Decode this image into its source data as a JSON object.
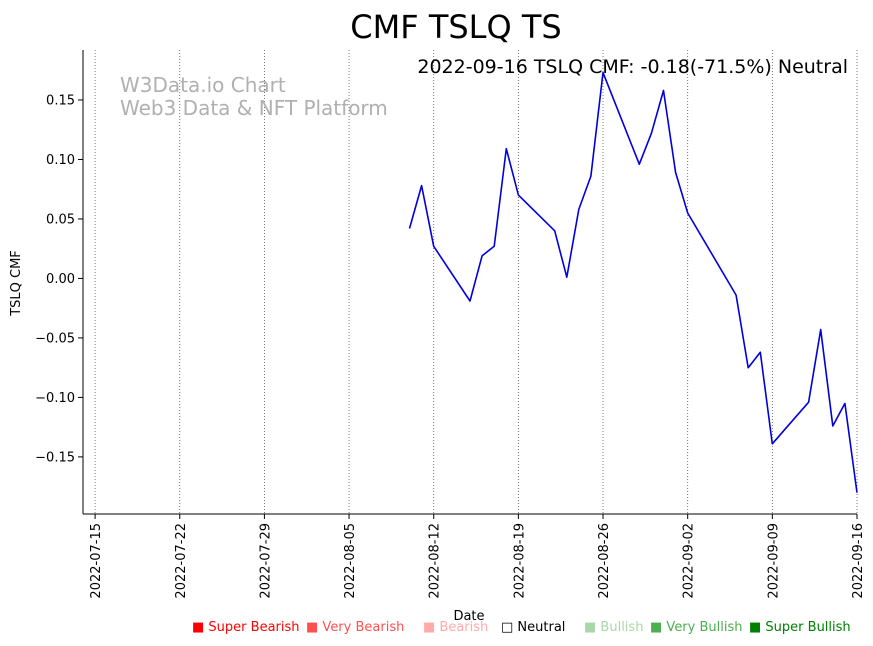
{
  "chart_data": {
    "type": "line",
    "title": "CMF TSLQ TS",
    "subtitle": "2022-09-16 TSLQ CMF: -0.18(-71.5%) Neutral",
    "watermark": [
      "W3Data.io Chart",
      "Web3 Data & NFT Platform"
    ],
    "xlabel": "Date",
    "ylabel": "TSLQ CMF",
    "xlim": [
      "2022-07-14",
      "2022-09-16"
    ],
    "ylim": [
      -0.198,
      0.192
    ],
    "x_ticks": [
      "2022-07-15",
      "2022-07-22",
      "2022-07-29",
      "2022-08-05",
      "2022-08-12",
      "2022-08-19",
      "2022-08-26",
      "2022-09-02",
      "2022-09-09",
      "2022-09-16"
    ],
    "y_ticks": [
      0.15,
      0.1,
      0.05,
      0.0,
      -0.05,
      -0.1,
      -0.15
    ],
    "y_tick_labels": [
      "0.15",
      "0.10",
      "0.05",
      "0.00",
      "−0.05",
      "−0.10",
      "−0.15"
    ],
    "grid": "vertical dotted at x ticks",
    "series": [
      {
        "color": "#0000dd",
        "points": [
          [
            "2022-08-10",
            0.042
          ],
          [
            "2022-08-11",
            0.078
          ],
          [
            "2022-08-12",
            0.027
          ],
          [
            "2022-08-15",
            -0.019
          ],
          [
            "2022-08-16",
            0.019
          ],
          [
            "2022-08-17",
            0.027
          ],
          [
            "2022-08-18",
            0.109
          ],
          [
            "2022-08-19",
            0.07
          ],
          [
            "2022-08-22",
            0.04
          ],
          [
            "2022-08-23",
            0.001
          ],
          [
            "2022-08-24",
            0.058
          ],
          [
            "2022-08-25",
            0.086
          ],
          [
            "2022-08-26",
            0.173
          ],
          [
            "2022-08-29",
            0.096
          ],
          [
            "2022-08-30",
            0.122
          ],
          [
            "2022-08-31",
            0.158
          ],
          [
            "2022-09-01",
            0.089
          ],
          [
            "2022-09-02",
            0.055
          ],
          [
            "2022-09-06",
            -0.014
          ],
          [
            "2022-09-07",
            -0.075
          ],
          [
            "2022-09-08",
            -0.062
          ],
          [
            "2022-09-09",
            -0.139
          ],
          [
            "2022-09-12",
            -0.104
          ],
          [
            "2022-09-13",
            -0.043
          ],
          [
            "2022-09-14",
            -0.124
          ],
          [
            "2022-09-15",
            -0.105
          ],
          [
            "2022-09-16",
            -0.18
          ]
        ]
      }
    ],
    "legend": [
      {
        "label": "Super Bearish",
        "color": "#ff0000",
        "filled": true
      },
      {
        "label": "Very Bearish",
        "color": "#ff5050",
        "filled": true
      },
      {
        "label": "Bearish",
        "color": "#ffaaaa",
        "filled": true
      },
      {
        "label": "Neutral",
        "color": "#000000",
        "filled": false
      },
      {
        "label": "Bullish",
        "color": "#a8d8a8",
        "filled": true
      },
      {
        "label": "Very Bullish",
        "color": "#4caf50",
        "filled": true
      },
      {
        "label": "Super Bullish",
        "color": "#008000",
        "filled": true
      }
    ]
  }
}
